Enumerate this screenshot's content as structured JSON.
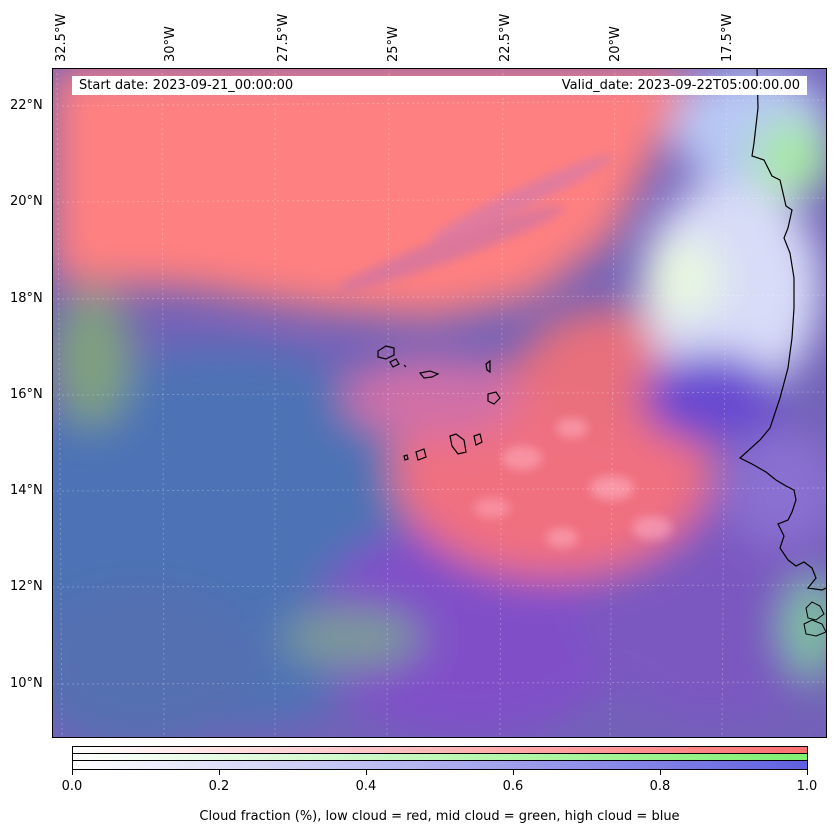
{
  "map": {
    "start_date": "Start date: 2023-09-21_00:00:00",
    "valid_date": "Valid_date: 2023-09-22T05:00:00.00",
    "longitude_labels": [
      "32.5°W",
      "30°W",
      "27.5°W",
      "25°W",
      "22.5°W",
      "20°W",
      "17.5°W"
    ],
    "latitude_labels": [
      "22°N",
      "20°N",
      "18°N",
      "16°N",
      "14°N",
      "12°N",
      "10°N"
    ],
    "region": "Eastern tropical Atlantic / Cape Verde / West African coast",
    "colors": {
      "low_cloud": "#ff7070",
      "mid_cloud": "#80f070",
      "high_cloud": "#6060e0",
      "clear_ocean": "#4a70b8"
    }
  },
  "colorbar": {
    "tick_labels": [
      "0.0",
      "0.2",
      "0.4",
      "0.6",
      "0.8",
      "1.0"
    ],
    "caption": "Cloud fraction (%), low cloud = red, mid cloud = green, high cloud = blue"
  }
}
